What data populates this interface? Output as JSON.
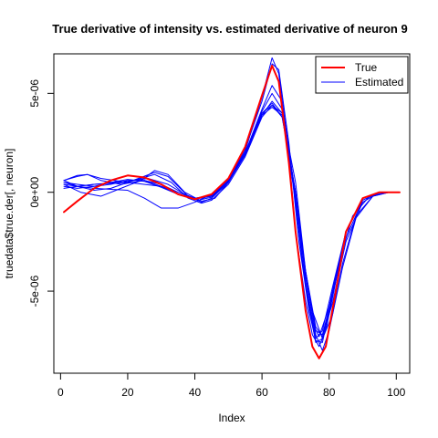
{
  "chart_data": {
    "type": "line",
    "title": "True derivative of intensity vs. estimated derivative of neuron 9",
    "xlabel": "Index",
    "ylabel": "truedata$true.der[, neuron]",
    "xlim": [
      -2,
      104
    ],
    "ylim": [
      -9.15e-06,
      7e-06
    ],
    "x_ticks": [
      0,
      20,
      40,
      60,
      80,
      100
    ],
    "x_tick_labels": [
      "0",
      "20",
      "40",
      "60",
      "80",
      "100"
    ],
    "y_ticks": [
      -5e-06,
      0,
      5e-06
    ],
    "y_tick_labels": [
      "-5e-06",
      "0e+00",
      "5e-06"
    ],
    "grid": false,
    "legend": {
      "position": "top-right",
      "entries": [
        {
          "label": "True",
          "color": "#ff0000"
        },
        {
          "label": "Estimated",
          "color": "#0000ff"
        }
      ]
    },
    "colors": {
      "true": "#ff0000",
      "estimated": "#0000ff"
    },
    "series": [
      {
        "name": "True",
        "color": "#ff0000",
        "points": [
          [
            1,
            -1e-06
          ],
          [
            5,
            -4.5e-07
          ],
          [
            10,
            2e-07
          ],
          [
            15,
            6e-07
          ],
          [
            20,
            8.5e-07
          ],
          [
            25,
            7.5e-07
          ],
          [
            30,
            4e-07
          ],
          [
            35,
            -1e-07
          ],
          [
            40,
            -3.5e-07
          ],
          [
            45,
            -1e-07
          ],
          [
            50,
            7e-07
          ],
          [
            55,
            2.3e-06
          ],
          [
            60,
            4.9e-06
          ],
          [
            63,
            6.4e-06
          ],
          [
            65,
            5.6e-06
          ],
          [
            68,
            1.5e-06
          ],
          [
            70,
            -2e-06
          ],
          [
            73,
            -6e-06
          ],
          [
            75,
            -7.8e-06
          ],
          [
            77,
            -8.4e-06
          ],
          [
            79,
            -7.8e-06
          ],
          [
            82,
            -5e-06
          ],
          [
            85,
            -2e-06
          ],
          [
            90,
            -3e-07
          ],
          [
            95,
            0
          ],
          [
            101,
            0
          ]
        ]
      },
      {
        "color": "#0000ff",
        "points": [
          [
            1,
            6e-07
          ],
          [
            5,
            8.5e-07
          ],
          [
            8,
            9e-07
          ],
          [
            12,
            7e-07
          ],
          [
            20,
            5e-07
          ],
          [
            30,
            3e-07
          ],
          [
            35,
            0
          ],
          [
            40,
            -3e-07
          ],
          [
            45,
            -2e-07
          ],
          [
            50,
            6e-07
          ],
          [
            55,
            2.1e-06
          ],
          [
            60,
            4.8e-06
          ],
          [
            63,
            6.8e-06
          ],
          [
            65,
            6e-06
          ],
          [
            68,
            2e-06
          ],
          [
            70,
            -2e-06
          ],
          [
            73,
            -5.5e-06
          ],
          [
            75,
            -7.2e-06
          ],
          [
            77,
            -7.8e-06
          ],
          [
            79,
            -7e-06
          ],
          [
            82,
            -4.5e-06
          ],
          [
            85,
            -2e-06
          ],
          [
            90,
            -3e-07
          ],
          [
            95,
            0
          ],
          [
            101,
            0
          ]
        ]
      },
      {
        "color": "#0000ff",
        "points": [
          [
            1,
            2e-07
          ],
          [
            5,
            3e-07
          ],
          [
            10,
            4e-07
          ],
          [
            20,
            5e-07
          ],
          [
            28,
            1e-06
          ],
          [
            32,
            8e-07
          ],
          [
            38,
            -2e-07
          ],
          [
            42,
            -5e-07
          ],
          [
            45,
            -3e-07
          ],
          [
            50,
            5e-07
          ],
          [
            55,
            1.9e-06
          ],
          [
            60,
            3.9e-06
          ],
          [
            63,
            4.6e-06
          ],
          [
            66,
            4e-06
          ],
          [
            70,
            0
          ],
          [
            73,
            -4.5e-06
          ],
          [
            76,
            -7.4e-06
          ],
          [
            78,
            -7e-06
          ],
          [
            81,
            -4.8e-06
          ],
          [
            85,
            -2e-06
          ],
          [
            90,
            -3e-07
          ],
          [
            95,
            0
          ],
          [
            101,
            0
          ]
        ]
      },
      {
        "color": "#0000ff",
        "points": [
          [
            1,
            6e-07
          ],
          [
            5,
            3e-07
          ],
          [
            10,
            1e-07
          ],
          [
            15,
            2e-07
          ],
          [
            20,
            5e-07
          ],
          [
            28,
            9e-07
          ],
          [
            33,
            5e-07
          ],
          [
            38,
            -3e-07
          ],
          [
            42,
            -5.5e-07
          ],
          [
            45,
            -4e-07
          ],
          [
            50,
            4e-07
          ],
          [
            55,
            1.8e-06
          ],
          [
            60,
            3.8e-06
          ],
          [
            63,
            4.4e-06
          ],
          [
            66,
            3.8e-06
          ],
          [
            70,
            0
          ],
          [
            73,
            -4e-06
          ],
          [
            76,
            -7e-06
          ],
          [
            78,
            -7.2e-06
          ],
          [
            81,
            -5.2e-06
          ],
          [
            85,
            -2.3e-06
          ],
          [
            90,
            -4e-07
          ],
          [
            95,
            0
          ],
          [
            101,
            0
          ]
        ]
      },
      {
        "color": "#0000ff",
        "points": [
          [
            1,
            4e-07
          ],
          [
            6,
            0
          ],
          [
            12,
            -2e-07
          ],
          [
            18,
            2e-07
          ],
          [
            24,
            6e-07
          ],
          [
            28,
            1.1e-06
          ],
          [
            32,
            9e-07
          ],
          [
            37,
            0
          ],
          [
            42,
            -4.5e-07
          ],
          [
            46,
            -3e-07
          ],
          [
            50,
            5e-07
          ],
          [
            55,
            2e-06
          ],
          [
            60,
            4.1e-06
          ],
          [
            63,
            5e-06
          ],
          [
            66,
            4.2e-06
          ],
          [
            70,
            -5e-07
          ],
          [
            73,
            -4.8e-06
          ],
          [
            76,
            -7.6e-06
          ],
          [
            78,
            -7.4e-06
          ],
          [
            81,
            -5e-06
          ],
          [
            85,
            -2e-06
          ],
          [
            90,
            -3e-07
          ],
          [
            95,
            0
          ],
          [
            101,
            0
          ]
        ]
      },
      {
        "color": "#0000ff",
        "points": [
          [
            1,
            5e-07
          ],
          [
            5,
            4e-07
          ],
          [
            10,
            3e-07
          ],
          [
            15,
            4e-07
          ],
          [
            20,
            6e-07
          ],
          [
            25,
            6e-07
          ],
          [
            30,
            3e-07
          ],
          [
            35,
            -1e-07
          ],
          [
            40,
            -3e-07
          ],
          [
            45,
            -1.5e-07
          ],
          [
            50,
            6e-07
          ],
          [
            55,
            2e-06
          ],
          [
            60,
            4.2e-06
          ],
          [
            63,
            5.4e-06
          ],
          [
            66,
            4.6e-06
          ],
          [
            69,
            1e-06
          ],
          [
            72,
            -3.5e-06
          ],
          [
            75,
            -6.6e-06
          ],
          [
            77,
            -7.3e-06
          ],
          [
            80,
            -5.8e-06
          ],
          [
            83,
            -3.5e-06
          ],
          [
            87,
            -1.2e-06
          ],
          [
            92,
            -2e-07
          ],
          [
            97,
            0
          ],
          [
            101,
            0
          ]
        ]
      },
      {
        "color": "#0000ff",
        "points": [
          [
            1,
            3e-07
          ],
          [
            5,
            2e-07
          ],
          [
            10,
            3e-07
          ],
          [
            15,
            5e-07
          ],
          [
            20,
            6.5e-07
          ],
          [
            25,
            5.5e-07
          ],
          [
            30,
            2.5e-07
          ],
          [
            35,
            -1e-07
          ],
          [
            40,
            -3.5e-07
          ],
          [
            45,
            -2e-07
          ],
          [
            50,
            5.5e-07
          ],
          [
            55,
            1.9e-06
          ],
          [
            60,
            4e-06
          ],
          [
            63,
            4.5e-06
          ],
          [
            66,
            3.8e-06
          ],
          [
            69,
            1e-06
          ],
          [
            72,
            -3e-06
          ],
          [
            75,
            -6e-06
          ],
          [
            78,
            -7.4e-06
          ],
          [
            81,
            -6.2e-06
          ],
          [
            84,
            -3.6e-06
          ],
          [
            88,
            -1.2e-06
          ],
          [
            93,
            -2e-07
          ],
          [
            98,
            0
          ],
          [
            101,
            0
          ]
        ]
      },
      {
        "color": "#0000ff",
        "points": [
          [
            1,
            5e-07
          ],
          [
            5,
            3e-07
          ],
          [
            10,
            2e-07
          ],
          [
            20,
            1e-07
          ],
          [
            25,
            -3e-07
          ],
          [
            30,
            -8e-07
          ],
          [
            35,
            -8e-07
          ],
          [
            40,
            -5e-07
          ],
          [
            45,
            -1e-07
          ],
          [
            50,
            6.5e-07
          ],
          [
            55,
            2e-06
          ],
          [
            60,
            4e-06
          ],
          [
            63,
            4.4e-06
          ],
          [
            66,
            4e-06
          ],
          [
            70,
            5e-07
          ],
          [
            73,
            -4e-06
          ],
          [
            76,
            -6.8e-06
          ],
          [
            78,
            -7.3e-06
          ],
          [
            81,
            -5.6e-06
          ],
          [
            85,
            -2.5e-06
          ],
          [
            90,
            -5e-07
          ],
          [
            95,
            0
          ],
          [
            101,
            0
          ]
        ]
      },
      {
        "color": "#0000ff",
        "points": [
          [
            1,
            6e-07
          ],
          [
            5,
            8e-07
          ],
          [
            8,
            9e-07
          ],
          [
            12,
            6e-07
          ],
          [
            18,
            4e-07
          ],
          [
            25,
            6e-07
          ],
          [
            30,
            4e-07
          ],
          [
            35,
            0
          ],
          [
            40,
            -3e-07
          ],
          [
            45,
            -2e-07
          ],
          [
            50,
            6e-07
          ],
          [
            55,
            2.2e-06
          ],
          [
            60,
            4.6e-06
          ],
          [
            63,
            6.5e-06
          ],
          [
            65,
            6.2e-06
          ],
          [
            68,
            2.5e-06
          ],
          [
            71,
            -2.5e-06
          ],
          [
            74,
            -6e-06
          ],
          [
            76,
            -7.5e-06
          ],
          [
            78,
            -7.6e-06
          ],
          [
            81,
            -5.2e-06
          ],
          [
            85,
            -2e-06
          ],
          [
            90,
            -3e-07
          ],
          [
            95,
            0
          ],
          [
            101,
            0
          ]
        ]
      },
      {
        "color": "#0000ff",
        "points": [
          [
            1,
            4e-07
          ],
          [
            5,
            3e-07
          ],
          [
            10,
            4e-07
          ],
          [
            20,
            5.5e-07
          ],
          [
            26,
            7e-07
          ],
          [
            32,
            4e-07
          ],
          [
            37,
            -1e-07
          ],
          [
            41,
            -4e-07
          ],
          [
            45,
            -2.5e-07
          ],
          [
            50,
            5.5e-07
          ],
          [
            55,
            1.9e-06
          ],
          [
            60,
            3.9e-06
          ],
          [
            63,
            4.3e-06
          ],
          [
            66,
            3.9e-06
          ],
          [
            70,
            0
          ],
          [
            73,
            -4.2e-06
          ],
          [
            76,
            -7.2e-06
          ],
          [
            78,
            -8e-06
          ],
          [
            80,
            -7e-06
          ],
          [
            84,
            -3.8e-06
          ],
          [
            88,
            -1.3e-06
          ],
          [
            93,
            -2e-07
          ],
          [
            98,
            0
          ],
          [
            101,
            0
          ]
        ]
      }
    ]
  }
}
